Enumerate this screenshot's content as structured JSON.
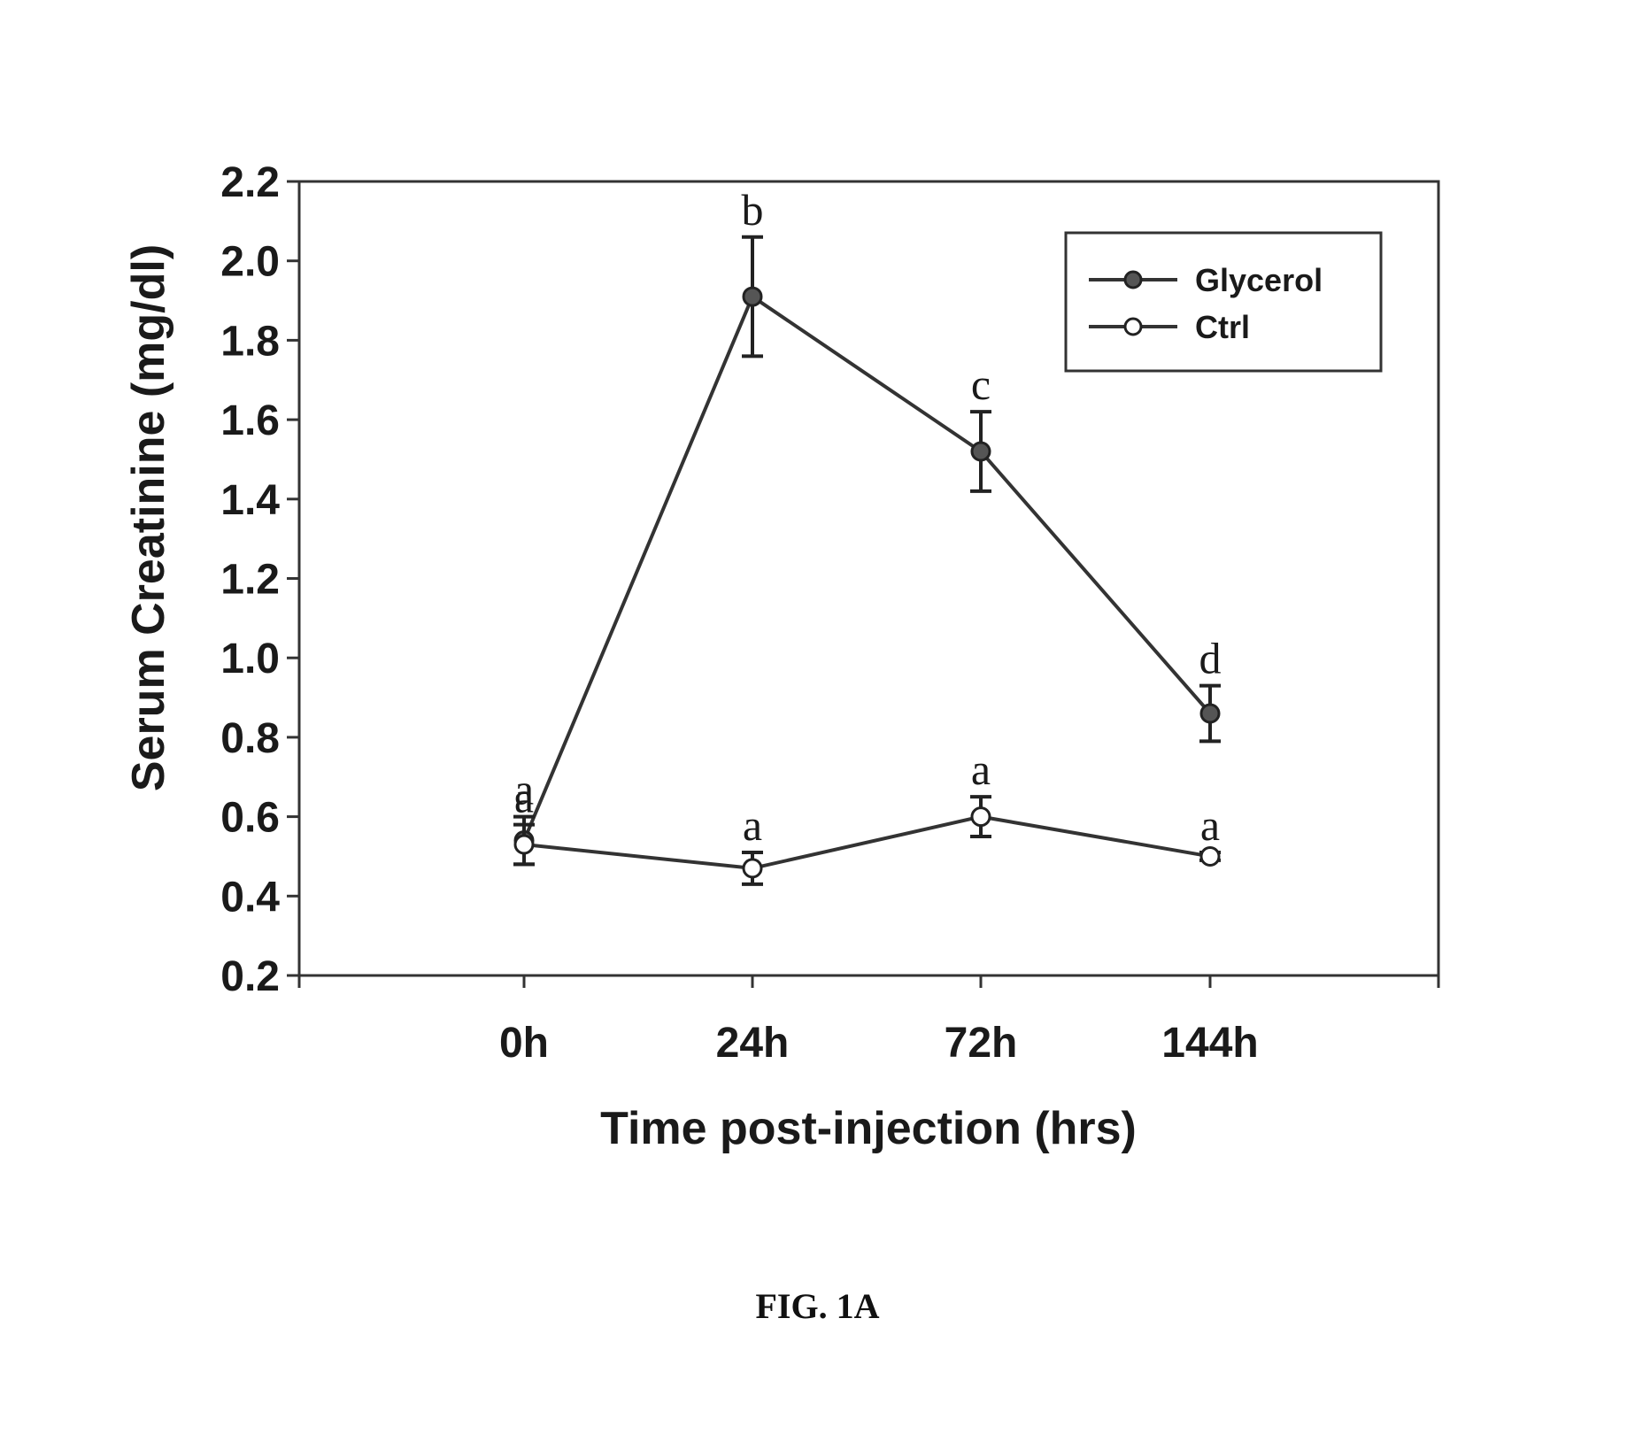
{
  "chart_data": {
    "type": "line",
    "categories": [
      "0h",
      "24h",
      "72h",
      "144h"
    ],
    "xlabel": "Time post-injection (hrs)",
    "ylabel": "Serum Creatinine (mg/dl)",
    "ylim": [
      0.2,
      2.2
    ],
    "yticks": [
      "0.2",
      "0.4",
      "0.6",
      "0.8",
      "1.0",
      "1.2",
      "1.4",
      "1.6",
      "1.8",
      "2.0",
      "2.2"
    ],
    "grid": false,
    "legend_position": "top-right",
    "series": [
      {
        "name": "Glycerol",
        "marker": "filled-circle",
        "color": "#333333",
        "values": [
          0.54,
          1.91,
          1.52,
          0.86
        ],
        "errors": [
          0.06,
          0.15,
          0.1,
          0.07
        ],
        "letters": [
          "a",
          "b",
          "c",
          "d"
        ]
      },
      {
        "name": "Ctrl",
        "marker": "open-circle",
        "color": "#333333",
        "values": [
          0.53,
          0.47,
          0.6,
          0.5
        ],
        "errors": [
          0.05,
          0.04,
          0.05,
          0.01
        ],
        "letters": [
          "a",
          "a",
          "a",
          "a"
        ]
      }
    ]
  },
  "caption": "FIG. 1A"
}
